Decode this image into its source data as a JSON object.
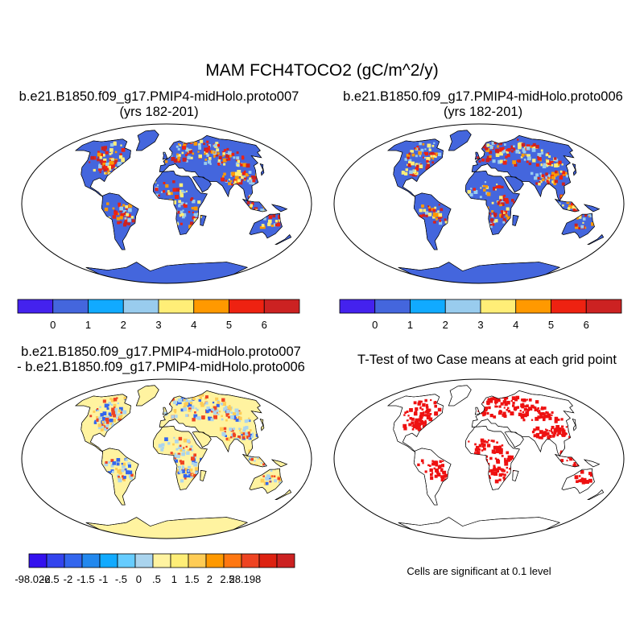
{
  "figure": {
    "title": "MAM FCH4TOCO2 (gC/m^2/y)"
  },
  "panels": [
    {
      "id": "case1",
      "title_line1": "b.e21.B1850.f09_g17.PMIP4-midHolo.proto007",
      "title_line2": "(yrs 182-201)",
      "background": "#4466dd",
      "antarctica": "#4466dd",
      "hotspot_palette": [
        "#cc2222",
        "#ee2211",
        "#ff9900",
        "#ffee77",
        "#99ccee"
      ]
    },
    {
      "id": "case2",
      "title_line1": "b.e21.B1850.f09_g17.PMIP4-midHolo.proto006",
      "title_line2": "(yrs 182-201)",
      "background": "#4466dd",
      "antarctica": "#4466dd",
      "hotspot_palette": [
        "#cc2222",
        "#ee2211",
        "#ff9900",
        "#ffee77",
        "#99ccee"
      ]
    },
    {
      "id": "difference",
      "title_line1": "b.e21.B1850.f09_g17.PMIP4-midHolo.proto007",
      "title_line2": "- b.e21.B1850.f09_g17.PMIP4-midHolo.proto006",
      "background": "#fff3a0",
      "antarctica": "#fff3a0",
      "hotspot_palette": [
        "#aad4ee",
        "#aad4ee",
        "#ffcc55",
        "#ee4422",
        "#3366ee"
      ]
    },
    {
      "id": "ttest",
      "title_line1": "T-Test of two Case means at each grid point",
      "title_line2": "",
      "background": "#ffffff",
      "antarctica": "#ffffff",
      "hotspot_palette": [
        "#ee1111"
      ]
    }
  ],
  "colorbar_top": {
    "colors": [
      "#4422ee",
      "#4466dd",
      "#11aaff",
      "#99ccee",
      "#ffee77",
      "#ff9900",
      "#ee2211",
      "#cc2222"
    ],
    "labels": [
      "0",
      "1",
      "2",
      "3",
      "4",
      "5",
      "6"
    ]
  },
  "colorbar_diff": {
    "colors": [
      "#3311ee",
      "#3344ee",
      "#3366ee",
      "#2288ee",
      "#11aaff",
      "#66ccff",
      "#aad4ee",
      "#fff3a0",
      "#ffee77",
      "#ffcc55",
      "#ff9900",
      "#ff7711",
      "#ee4422",
      "#dd2211",
      "#cc2222"
    ],
    "labels": [
      "-98.026",
      "-2.5",
      "-2",
      "-1.5",
      "-1",
      "-.5",
      "0",
      ".5",
      "1",
      "1.5",
      "2",
      "2.5",
      "28.198"
    ]
  },
  "significance_note": "Cells are significant at 0.1 level"
}
